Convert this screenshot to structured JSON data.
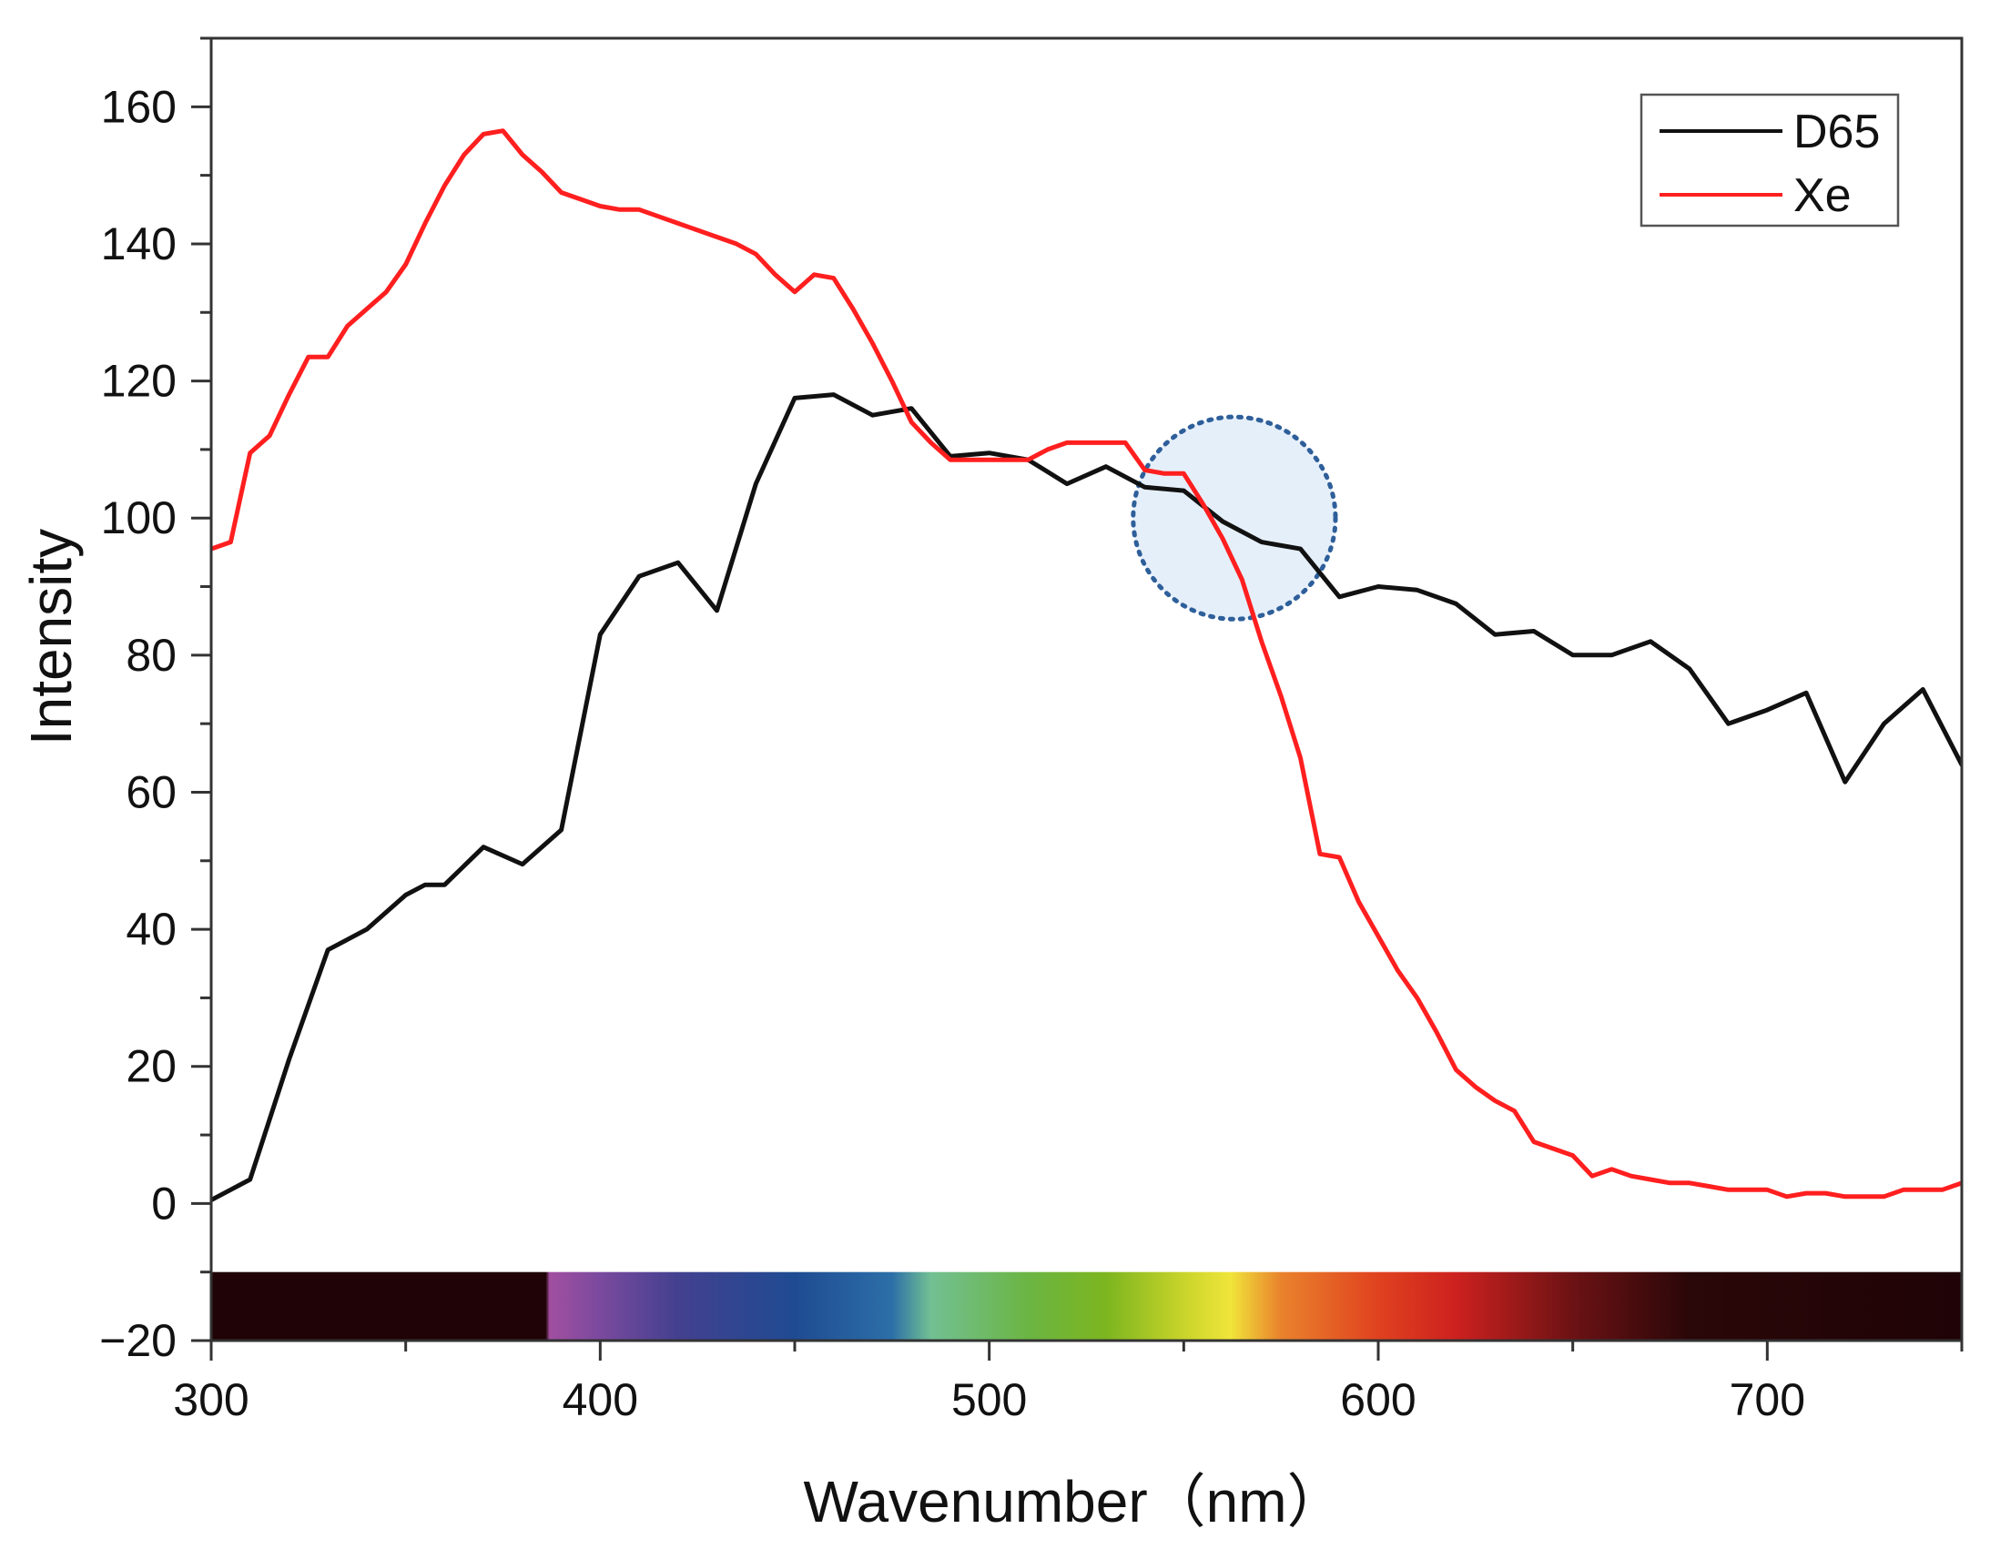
{
  "chart_data": {
    "type": "line",
    "xlabel": "Wavenumber（nm）",
    "ylabel": "Intensity",
    "xlim": [
      300,
      750
    ],
    "ylim": [
      -20,
      170
    ],
    "x_ticks": [
      300,
      400,
      500,
      600,
      700
    ],
    "y_ticks": [
      -20,
      0,
      20,
      40,
      60,
      80,
      100,
      120,
      140,
      160
    ],
    "x_tick_labels": [
      "300",
      "400",
      "500",
      "600",
      "700"
    ],
    "y_tick_labels": [
      "−20",
      "0",
      "20",
      "40",
      "60",
      "80",
      "100",
      "120",
      "140",
      "160"
    ],
    "legend_position": "top-right",
    "grid": false,
    "spectrum_band": {
      "y_range": [
        -20,
        -10
      ],
      "dark_color": "#1f0306",
      "stops": [
        {
          "x": 300,
          "color": "#1f0306"
        },
        {
          "x": 386,
          "color": "#1f0306"
        },
        {
          "x": 387,
          "color": "#a24fa0"
        },
        {
          "x": 400,
          "color": "#7a4a9e"
        },
        {
          "x": 420,
          "color": "#43408f"
        },
        {
          "x": 450,
          "color": "#1f4b92"
        },
        {
          "x": 475,
          "color": "#2c6fa8"
        },
        {
          "x": 485,
          "color": "#72c093"
        },
        {
          "x": 510,
          "color": "#6bb543"
        },
        {
          "x": 530,
          "color": "#7cb51f"
        },
        {
          "x": 550,
          "color": "#c9d42a"
        },
        {
          "x": 562,
          "color": "#f0e53a"
        },
        {
          "x": 575,
          "color": "#e9822c"
        },
        {
          "x": 600,
          "color": "#e0421f"
        },
        {
          "x": 620,
          "color": "#cc211f"
        },
        {
          "x": 650,
          "color": "#6c1214"
        },
        {
          "x": 680,
          "color": "#2a0708"
        },
        {
          "x": 750,
          "color": "#1f0306"
        }
      ]
    },
    "highlight_circle": {
      "x": 563,
      "y": 100,
      "radius_nm": 26
    },
    "series": [
      {
        "name": "D65",
        "color": "#111111",
        "x": [
          300,
          310,
          320,
          330,
          340,
          350,
          355,
          360,
          370,
          380,
          390,
          400,
          410,
          420,
          430,
          440,
          450,
          460,
          470,
          480,
          490,
          500,
          510,
          520,
          530,
          540,
          550,
          560,
          570,
          580,
          590,
          600,
          610,
          620,
          630,
          640,
          650,
          660,
          670,
          680,
          690,
          700,
          710,
          720,
          730,
          740,
          750
        ],
        "y": [
          0.5,
          3.5,
          21,
          37,
          40,
          45,
          46.5,
          46.5,
          52,
          49.5,
          54.5,
          83,
          91.5,
          93.5,
          86.5,
          105,
          117.5,
          118,
          115,
          116,
          109,
          109.5,
          108.5,
          105,
          107.5,
          104.5,
          104,
          99.5,
          96.5,
          95.5,
          88.5,
          90,
          89.5,
          87.5,
          83,
          83.5,
          80,
          80,
          82,
          78,
          70,
          72,
          74.5,
          61.5,
          70,
          75,
          64
        ]
      },
      {
        "name": "Xe",
        "color": "#ff1f1f",
        "x": [
          300,
          305,
          310,
          315,
          320,
          325,
          330,
          335,
          340,
          345,
          350,
          355,
          360,
          365,
          370,
          375,
          380,
          385,
          390,
          395,
          400,
          405,
          410,
          415,
          420,
          425,
          430,
          435,
          440,
          445,
          450,
          455,
          460,
          465,
          470,
          475,
          480,
          485,
          490,
          495,
          500,
          505,
          510,
          515,
          520,
          525,
          530,
          535,
          540,
          545,
          550,
          555,
          560,
          565,
          570,
          575,
          580,
          585,
          590,
          595,
          600,
          605,
          610,
          615,
          620,
          625,
          630,
          635,
          640,
          645,
          650,
          655,
          660,
          665,
          670,
          675,
          680,
          685,
          690,
          695,
          700,
          705,
          710,
          715,
          720,
          725,
          730,
          735,
          740,
          745,
          750
        ],
        "y": [
          95.5,
          96.5,
          109.5,
          112,
          118,
          123.5,
          123.5,
          128,
          130.5,
          133,
          137,
          143,
          148.5,
          153,
          156,
          156.5,
          153,
          150.5,
          147.5,
          146.5,
          145.5,
          145,
          145,
          144,
          143,
          142,
          141,
          140,
          138.5,
          135.5,
          133,
          135.5,
          135,
          130.5,
          125.5,
          120,
          114,
          111,
          108.5,
          108.5,
          108.5,
          108.5,
          108.5,
          110,
          111,
          111,
          111,
          111,
          107,
          106.5,
          106.5,
          102,
          97,
          91,
          82,
          74,
          65,
          51,
          50.5,
          44,
          39,
          34,
          30,
          25,
          19.5,
          17,
          15,
          13.5,
          9,
          8,
          7,
          4,
          5,
          4,
          3.5,
          3,
          3,
          2.5,
          2,
          2,
          2,
          1,
          1.5,
          1.5,
          1,
          1,
          1,
          2,
          2,
          2,
          3
        ]
      }
    ]
  }
}
